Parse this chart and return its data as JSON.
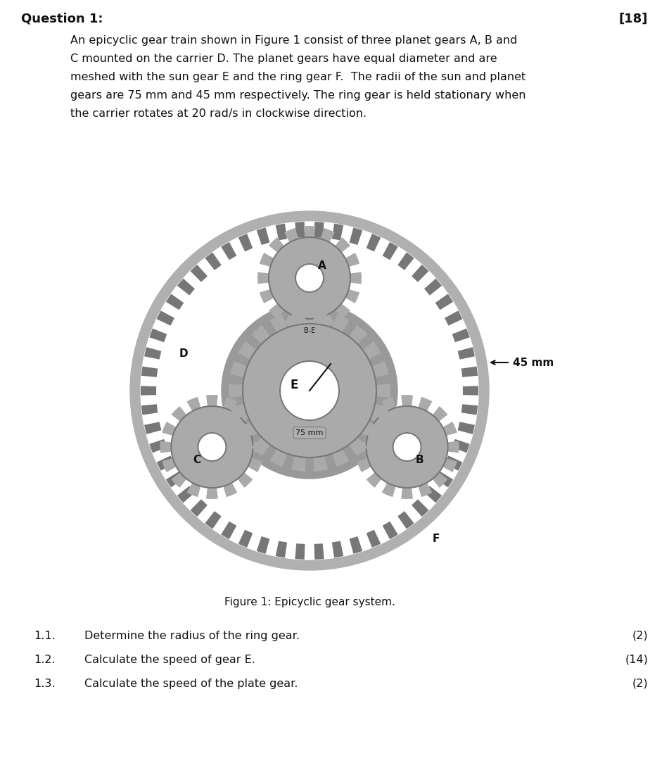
{
  "title": "Question 1:",
  "title_mark": "[18]",
  "para_lines": [
    "An epicyclic gear train shown in Figure 1 consist of three planet gears A, B and",
    "C mounted on the carrier D. The planet gears have equal diameter and are",
    "meshed with the sun gear E and the ring gear F.  The radii of the sun and planet",
    "gears are 75 mm and 45 mm respectively. The ring gear is held stationary when",
    "the carrier rotates at 20 rad/s in clockwise direction."
  ],
  "figure_caption": "Figure 1: Epicyclic gear system.",
  "questions": [
    {
      "num": "1.1.",
      "text": "Determine the radius of the ring gear.",
      "mark": "(2)"
    },
    {
      "num": "1.2.",
      "text": "Calculate the speed of gear E.",
      "mark": "(14)"
    },
    {
      "num": "1.3.",
      "text": "Calculate the speed of the plate gear.",
      "mark": "(2)"
    }
  ],
  "bg_color": "#ffffff",
  "text_color": "#000000",
  "gray_outer": "#aaaaaa",
  "gray_dark": "#777777",
  "gray_carrier": "#999999",
  "gray_med": "#b0b0b0",
  "white": "#ffffff",
  "black": "#111111"
}
